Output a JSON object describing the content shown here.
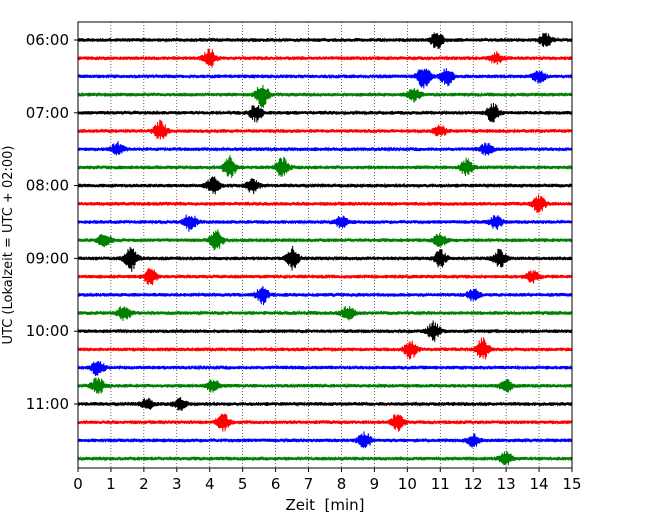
{
  "chart_data": {
    "type": "line",
    "title": "",
    "xlabel": "Zeit  [min]",
    "ylabel": "UTC (Lokalzeit = UTC + 02:00)",
    "xlim": [
      0,
      15
    ],
    "x_ticks": [
      0,
      1,
      2,
      3,
      4,
      5,
      6,
      7,
      8,
      9,
      10,
      11,
      12,
      13,
      14,
      15
    ],
    "y_tick_labels": [
      "06:00",
      "07:00",
      "08:00",
      "09:00",
      "10:00",
      "11:00"
    ],
    "rows_per_hour": 4,
    "row_colors": [
      "#000000",
      "#ff0000",
      "#0000ff",
      "#008000"
    ],
    "grid": "vertical dotted lines at each minute",
    "rows": [
      {
        "start": "06:00",
        "color": "#000000",
        "events": [
          [
            10.9,
            1.5
          ],
          [
            14.2,
            1.2
          ]
        ]
      },
      {
        "start": "06:15",
        "color": "#ff0000",
        "events": [
          [
            4.0,
            1.6
          ],
          [
            12.7,
            1.0
          ]
        ]
      },
      {
        "start": "06:30",
        "color": "#0000ff",
        "events": [
          [
            10.5,
            2.0
          ],
          [
            11.2,
            1.6
          ],
          [
            14.0,
            1.1
          ]
        ]
      },
      {
        "start": "06:45",
        "color": "#008000",
        "events": [
          [
            5.6,
            2.2
          ],
          [
            10.2,
            1.2
          ]
        ]
      },
      {
        "start": "07:00",
        "color": "#000000",
        "events": [
          [
            5.4,
            1.5
          ],
          [
            12.6,
            1.7
          ]
        ]
      },
      {
        "start": "07:15",
        "color": "#ff0000",
        "events": [
          [
            2.5,
            1.8
          ],
          [
            11.0,
            1.0
          ]
        ]
      },
      {
        "start": "07:30",
        "color": "#0000ff",
        "events": [
          [
            1.2,
            1.2
          ],
          [
            12.4,
            1.0
          ]
        ]
      },
      {
        "start": "07:45",
        "color": "#008000",
        "events": [
          [
            4.6,
            2.0
          ],
          [
            6.2,
            1.8
          ],
          [
            11.8,
            1.5
          ]
        ]
      },
      {
        "start": "08:00",
        "color": "#000000",
        "events": [
          [
            4.1,
            1.5
          ],
          [
            5.3,
            1.3
          ]
        ]
      },
      {
        "start": "08:15",
        "color": "#ff0000",
        "events": [
          [
            14.0,
            1.6
          ]
        ]
      },
      {
        "start": "08:30",
        "color": "#0000ff",
        "events": [
          [
            3.4,
            1.6
          ],
          [
            8.0,
            1.0
          ],
          [
            12.7,
            1.2
          ]
        ]
      },
      {
        "start": "08:45",
        "color": "#008000",
        "events": [
          [
            0.8,
            1.3
          ],
          [
            4.2,
            1.8
          ],
          [
            11.0,
            1.3
          ]
        ]
      },
      {
        "start": "09:00",
        "color": "#000000",
        "events": [
          [
            1.6,
            2.2
          ],
          [
            6.5,
            2.0
          ],
          [
            11.0,
            1.5
          ],
          [
            12.8,
            1.6
          ]
        ]
      },
      {
        "start": "09:15",
        "color": "#ff0000",
        "events": [
          [
            2.2,
            1.5
          ],
          [
            13.8,
            1.0
          ]
        ]
      },
      {
        "start": "09:30",
        "color": "#0000ff",
        "events": [
          [
            5.6,
            1.6
          ],
          [
            12.0,
            1.0
          ]
        ]
      },
      {
        "start": "09:45",
        "color": "#008000",
        "events": [
          [
            1.4,
            1.4
          ],
          [
            8.2,
            1.3
          ]
        ]
      },
      {
        "start": "10:00",
        "color": "#000000",
        "events": [
          [
            10.8,
            1.7
          ]
        ]
      },
      {
        "start": "10:15",
        "color": "#ff0000",
        "events": [
          [
            10.1,
            1.6
          ],
          [
            12.3,
            2.0
          ]
        ]
      },
      {
        "start": "10:30",
        "color": "#0000ff",
        "events": [
          [
            0.6,
            1.4
          ]
        ]
      },
      {
        "start": "10:45",
        "color": "#008000",
        "events": [
          [
            0.6,
            1.5
          ],
          [
            4.1,
            1.2
          ],
          [
            13.0,
            1.0
          ]
        ]
      },
      {
        "start": "11:00",
        "color": "#000000",
        "events": [
          [
            2.1,
            1.0
          ],
          [
            3.1,
            1.0
          ]
        ]
      },
      {
        "start": "11:15",
        "color": "#ff0000",
        "events": [
          [
            4.4,
            1.6
          ],
          [
            9.7,
            1.5
          ]
        ]
      },
      {
        "start": "11:30",
        "color": "#0000ff",
        "events": [
          [
            8.7,
            1.5
          ],
          [
            12.0,
            1.1
          ]
        ]
      },
      {
        "start": "11:45",
        "color": "#008000",
        "events": [
          [
            13.0,
            1.2
          ]
        ]
      }
    ]
  }
}
